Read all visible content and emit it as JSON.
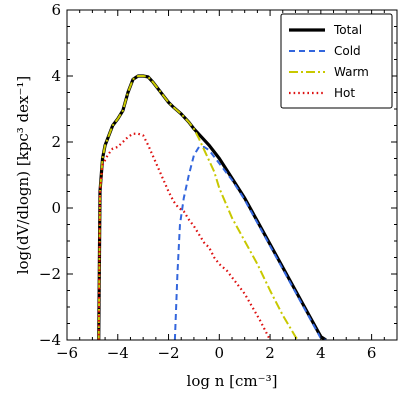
{
  "chart_data": {
    "type": "line",
    "xlabel": "log n [cm⁻³]",
    "ylabel": "log(dV/dlogn) [kpc³ dex⁻¹]",
    "xlim": [
      -6,
      7
    ],
    "ylim": [
      -4,
      6
    ],
    "xticks": [
      -6,
      -4,
      -2,
      0,
      2,
      4,
      6
    ],
    "xtick_labels": [
      "−6",
      "−4",
      "−2",
      "0",
      "2",
      "4",
      "6"
    ],
    "yticks": [
      -4,
      -2,
      0,
      2,
      4,
      6
    ],
    "ytick_labels": [
      "−4",
      "−2",
      "0",
      "2",
      "4",
      "6"
    ],
    "grid": false,
    "legend_position": "top-right",
    "series": [
      {
        "name": "Total",
        "color": "#000000",
        "style": "solid",
        "x": [
          -4.75,
          -4.7,
          -4.6,
          -4.5,
          -4.4,
          -4.2,
          -4.0,
          -3.8,
          -3.6,
          -3.4,
          -3.2,
          -3.0,
          -2.8,
          -2.6,
          -2.4,
          -2.2,
          -2.0,
          -1.8,
          -1.5,
          -1.2,
          -1.0,
          -0.7,
          -0.4,
          -0.2,
          0.0,
          0.5,
          1.0,
          1.5,
          2.0,
          2.5,
          3.0,
          3.5,
          4.0,
          4.2
        ],
        "y": [
          -4.0,
          0.5,
          1.5,
          1.9,
          2.1,
          2.5,
          2.7,
          2.95,
          3.5,
          3.9,
          4.0,
          4.0,
          3.97,
          3.8,
          3.6,
          3.4,
          3.2,
          3.05,
          2.85,
          2.6,
          2.4,
          2.15,
          1.9,
          1.7,
          1.5,
          0.9,
          0.3,
          -0.4,
          -1.1,
          -1.8,
          -2.5,
          -3.2,
          -3.9,
          -4.0
        ]
      },
      {
        "name": "Cold",
        "color": "#3366dd",
        "style": "dashed",
        "x": [
          -1.75,
          -1.65,
          -1.55,
          -1.4,
          -1.2,
          -1.0,
          -0.8,
          -0.6,
          -0.4,
          -0.2,
          0.0,
          0.5,
          1.0,
          1.5,
          2.0,
          2.5,
          3.0,
          3.5,
          4.0,
          4.2
        ],
        "y": [
          -4.0,
          -2.0,
          -0.5,
          0.3,
          1.0,
          1.6,
          1.85,
          1.85,
          1.75,
          1.55,
          1.35,
          0.85,
          0.25,
          -0.45,
          -1.15,
          -1.85,
          -2.55,
          -3.25,
          -3.95,
          -4.0
        ]
      },
      {
        "name": "Warm",
        "color": "#c8c800",
        "style": "dashdot",
        "x": [
          -4.75,
          -4.7,
          -4.6,
          -4.5,
          -4.4,
          -4.2,
          -4.0,
          -3.8,
          -3.6,
          -3.4,
          -3.2,
          -3.0,
          -2.8,
          -2.6,
          -2.4,
          -2.2,
          -2.0,
          -1.8,
          -1.5,
          -1.2,
          -1.0,
          -0.8,
          -0.5,
          -0.2,
          0.0,
          0.5,
          1.0,
          1.5,
          2.0,
          2.5,
          3.0,
          3.1
        ],
        "y": [
          -4.0,
          0.5,
          1.5,
          1.9,
          2.1,
          2.5,
          2.7,
          2.95,
          3.5,
          3.9,
          4.0,
          4.0,
          3.97,
          3.8,
          3.6,
          3.4,
          3.2,
          3.05,
          2.85,
          2.6,
          2.4,
          2.1,
          1.6,
          1.1,
          0.6,
          -0.3,
          -1.0,
          -1.7,
          -2.5,
          -3.25,
          -3.9,
          -4.0
        ]
      },
      {
        "name": "Hot",
        "color": "#dd1111",
        "style": "dotted",
        "x": [
          -4.75,
          -4.7,
          -4.6,
          -4.4,
          -4.2,
          -4.0,
          -3.8,
          -3.6,
          -3.4,
          -3.2,
          -3.0,
          -2.8,
          -2.6,
          -2.4,
          -2.2,
          -2.0,
          -1.8,
          -1.6,
          -1.4,
          -1.2,
          -1.0,
          -0.8,
          -0.6,
          -0.4,
          -0.2,
          0.0,
          0.3,
          0.6,
          1.0,
          1.3,
          1.6,
          1.8,
          2.0
        ],
        "y": [
          -4.0,
          0.5,
          1.3,
          1.6,
          1.8,
          1.85,
          2.0,
          2.15,
          2.25,
          2.25,
          2.2,
          1.9,
          1.55,
          1.2,
          0.85,
          0.5,
          0.2,
          0.0,
          -0.1,
          -0.35,
          -0.55,
          -0.8,
          -1.05,
          -1.2,
          -1.5,
          -1.7,
          -1.9,
          -2.2,
          -2.6,
          -3.0,
          -3.4,
          -3.7,
          -4.0
        ]
      }
    ]
  }
}
